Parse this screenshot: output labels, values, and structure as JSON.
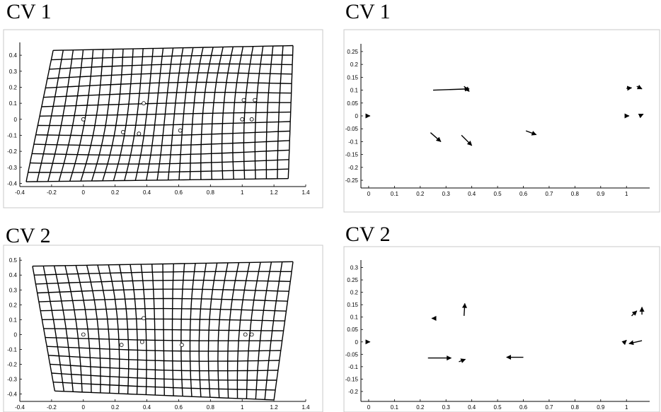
{
  "titles": [
    "CV 1",
    "CV 1",
    "CV 2",
    "CV 2"
  ],
  "chart_data": [
    {
      "type": "deformation-grid",
      "title": "CV 1",
      "xlim": [
        -0.4,
        1.4
      ],
      "ylim": [
        -0.42,
        0.48
      ],
      "xticks": [
        -0.4,
        -0.2,
        0,
        0.2,
        0.4,
        0.6,
        0.8,
        1,
        1.2,
        1.4
      ],
      "yticks": [
        -0.4,
        -0.3,
        -0.2,
        -0.1,
        0,
        0.1,
        0.2,
        0.3,
        0.4
      ],
      "grid_corners": {
        "top_left": [
          -0.19,
          0.43
        ],
        "top_right": [
          1.32,
          0.46
        ],
        "bottom_left": [
          -0.36,
          -0.39
        ],
        "bottom_right": [
          1.29,
          -0.37
        ]
      },
      "landmarks": {
        "x": [
          0,
          0.25,
          0.35,
          0.38,
          0.61,
          1.0,
          1.01,
          1.06,
          1.08
        ],
        "y": [
          0,
          -0.08,
          -0.09,
          0.1,
          -0.07,
          0,
          0.12,
          0,
          0.12
        ]
      }
    },
    {
      "type": "vector-field",
      "title": "CV 1",
      "xlim": [
        -0.03,
        1.09
      ],
      "ylim": [
        -0.28,
        0.28
      ],
      "xticks": [
        0,
        0.1,
        0.2,
        0.3,
        0.4,
        0.5,
        0.6,
        0.7,
        0.8,
        0.9,
        1
      ],
      "yticks": [
        -0.25,
        -0.2,
        -0.15,
        -0.1,
        -0.05,
        0,
        0.05,
        0.1,
        0.15,
        0.2,
        0.25
      ],
      "vectors": [
        {
          "x": 0,
          "y": 0,
          "dx": 0.005,
          "dy": 0
        },
        {
          "x": 0.25,
          "y": 0.1,
          "dx": 0.14,
          "dy": 0.005
        },
        {
          "x": 0.37,
          "y": 0.115,
          "dx": 0.02,
          "dy": -0.02
        },
        {
          "x": 0.24,
          "y": -0.065,
          "dx": 0.04,
          "dy": -0.035
        },
        {
          "x": 0.36,
          "y": -0.075,
          "dx": 0.04,
          "dy": -0.04
        },
        {
          "x": 0.61,
          "y": -0.058,
          "dx": 0.04,
          "dy": -0.015
        },
        {
          "x": 1.0,
          "y": 0.107,
          "dx": 0.02,
          "dy": 0.002
        },
        {
          "x": 1.04,
          "y": 0.115,
          "dx": 0.02,
          "dy": -0.01
        },
        {
          "x": 1.0,
          "y": 0,
          "dx": 0.01,
          "dy": 0
        },
        {
          "x": 1.05,
          "y": 0,
          "dx": 0.015,
          "dy": 0.007
        }
      ]
    },
    {
      "type": "deformation-grid",
      "title": "CV 2",
      "xlim": [
        -0.4,
        1.4
      ],
      "ylim": [
        -0.45,
        0.52
      ],
      "xticks": [
        -0.4,
        -0.2,
        0,
        0.2,
        0.4,
        0.6,
        0.8,
        1,
        1.2,
        1.4
      ],
      "yticks": [
        -0.4,
        -0.3,
        -0.2,
        -0.1,
        0,
        0.1,
        0.2,
        0.3,
        0.4,
        0.5
      ],
      "grid_corners": {
        "top_left": [
          -0.32,
          0.46
        ],
        "top_right": [
          1.32,
          0.49
        ],
        "bottom_left": [
          -0.18,
          -0.38
        ],
        "bottom_right": [
          1.2,
          -0.44
        ]
      },
      "landmarks": {
        "x": [
          0,
          0.24,
          0.37,
          0.38,
          0.62,
          1.02,
          1.06
        ],
        "y": [
          0,
          -0.07,
          -0.05,
          0.11,
          -0.07,
          0,
          0
        ]
      }
    },
    {
      "type": "vector-field",
      "title": "CV 2",
      "xlim": [
        -0.03,
        1.09
      ],
      "ylim": [
        -0.24,
        0.33
      ],
      "xticks": [
        0,
        0.1,
        0.2,
        0.3,
        0.4,
        0.5,
        0.6,
        0.7,
        0.8,
        0.9,
        1
      ],
      "yticks": [
        -0.2,
        -0.15,
        -0.1,
        -0.05,
        0,
        0.05,
        0.1,
        0.15,
        0.2,
        0.25,
        0.3
      ],
      "vectors": [
        {
          "x": 0,
          "y": 0,
          "dx": 0.005,
          "dy": 0
        },
        {
          "x": 0.26,
          "y": 0.095,
          "dx": -0.015,
          "dy": 0
        },
        {
          "x": 0.37,
          "y": 0.105,
          "dx": 0.003,
          "dy": 0.05
        },
        {
          "x": 0.23,
          "y": -0.065,
          "dx": 0.09,
          "dy": 0
        },
        {
          "x": 0.35,
          "y": -0.08,
          "dx": 0.025,
          "dy": 0.01
        },
        {
          "x": 0.6,
          "y": -0.062,
          "dx": -0.065,
          "dy": 0
        },
        {
          "x": 1.02,
          "y": 0.105,
          "dx": 0.02,
          "dy": 0.02
        },
        {
          "x": 1.06,
          "y": 0.11,
          "dx": 0.0,
          "dy": 0.03
        },
        {
          "x": 0.99,
          "y": -0.003,
          "dx": 0.01,
          "dy": 0.01
        },
        {
          "x": 1.06,
          "y": 0.005,
          "dx": -0.05,
          "dy": -0.012
        }
      ]
    }
  ]
}
